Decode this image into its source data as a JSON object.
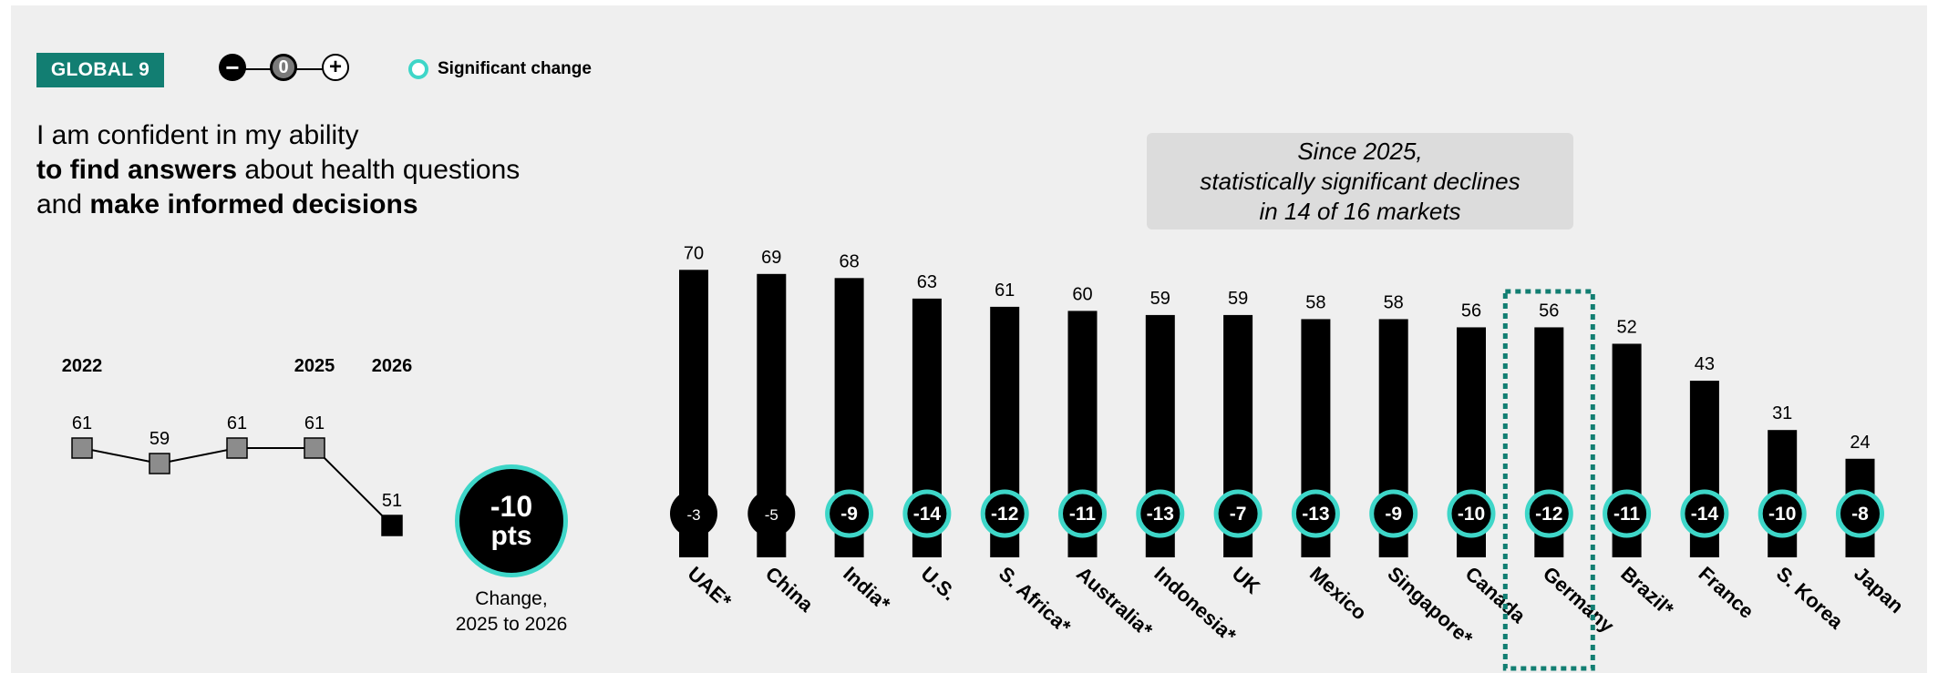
{
  "header": {
    "badge": "GLOBAL 9",
    "scale": {
      "minus": "−",
      "zero": "0",
      "plus": "+"
    },
    "significance_label": "Significant change"
  },
  "headline": {
    "line1": "I am confident in my ability",
    "line2_bold": "to find answers",
    "line2_rest": " about health questions",
    "line3_pre": "and ",
    "line3_bold": "make informed decisions"
  },
  "callout": {
    "line1": "Since 2025,",
    "line2": "statistically significant declines",
    "line3": "in 14 of 16 markets"
  },
  "big_change": {
    "value": "-10",
    "unit": "pts",
    "caption_line1": "Change,",
    "caption_line2": "2025 to 2026"
  },
  "colors": {
    "bar": "#000000",
    "significant_ring": "#3ed6c8",
    "badge": "#127e72",
    "trend_marker": "#8c8c8c",
    "highlight_box": "#127e72"
  },
  "chart_data": [
    {
      "type": "line",
      "title": "",
      "x_labels": [
        "2022",
        "",
        "",
        "2025",
        "2026"
      ],
      "series": [
        {
          "values": [
            61,
            59,
            61,
            61,
            51
          ]
        }
      ]
    },
    {
      "type": "bar",
      "title": "",
      "categories": [
        "UAE*",
        "China",
        "India*",
        "U.S.",
        "S. Africa*",
        "Australia*",
        "Indonesia*",
        "UK",
        "Mexico",
        "Singapore*",
        "Canada",
        "Germany",
        "Brazil*",
        "France",
        "S. Korea",
        "Japan"
      ],
      "values": [
        70,
        69,
        68,
        63,
        61,
        60,
        59,
        59,
        58,
        58,
        56,
        56,
        52,
        43,
        31,
        24
      ],
      "change_2025_to_2026": [
        -3,
        -5,
        -9,
        -14,
        -12,
        -11,
        -13,
        -7,
        -13,
        -9,
        -10,
        -12,
        -11,
        -14,
        -10,
        -8
      ],
      "significant": [
        false,
        false,
        true,
        true,
        true,
        true,
        true,
        true,
        true,
        true,
        true,
        true,
        true,
        true,
        true,
        true
      ],
      "highlighted": "Germany"
    }
  ]
}
